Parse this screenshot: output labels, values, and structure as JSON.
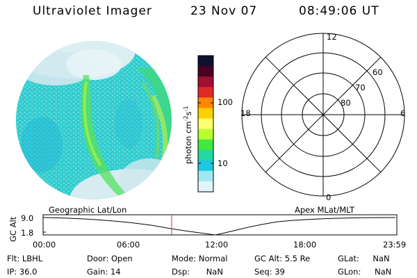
{
  "header": {
    "title": "Ultraviolet Imager",
    "date": "23 Nov 07",
    "time": "08:49:06 UT"
  },
  "colorbar": {
    "unit": "photon cm",
    "unit_exp1": "-2",
    "unit_s": "s",
    "unit_exp2": "-1",
    "ticks": [
      "100",
      "10"
    ],
    "colors": [
      "#101030",
      "#4a0020",
      "#a01030",
      "#e02a2a",
      "#ff8800",
      "#ffd000",
      "#ffff70",
      "#b8ff30",
      "#40e840",
      "#20d8a0",
      "#20c8e0",
      "#a0e8f0",
      "#e0f4f8"
    ]
  },
  "polar": {
    "mlt_labels": [
      "12",
      "18",
      "6",
      "0"
    ],
    "lat_labels": [
      "60",
      "70",
      "80"
    ]
  },
  "timeline": {
    "left_label": "Geographic Lat/Lon",
    "right_label": "Apex MLat/MLT",
    "y_axis_label": "GC Alt",
    "y_ticks": [
      "9.0",
      "1.8"
    ],
    "x_ticks": [
      "00:00",
      "06:00",
      "12:00",
      "18:00",
      "23:59"
    ],
    "cursor_color": "#cc3333"
  },
  "info": {
    "flt_label": "Flt:",
    "flt_value": "LBHL",
    "ip_label": "IP:",
    "ip_value": "36.0",
    "door_label": "Door:",
    "door_value": "Open",
    "gain_label": "Gain:",
    "gain_value": "14",
    "mode_label": "Mode:",
    "mode_value": "Normal",
    "dsp_label": "Dsp:",
    "dsp_value": "NaN",
    "gcalt_label": "GC Alt:",
    "gcalt_value": "5.5 Re",
    "seq_label": "Seq:",
    "seq_value": "39",
    "glat_label": "GLat:",
    "glat_value": "NaN",
    "glon_label": "GLon:",
    "glon_value": "NaN"
  }
}
